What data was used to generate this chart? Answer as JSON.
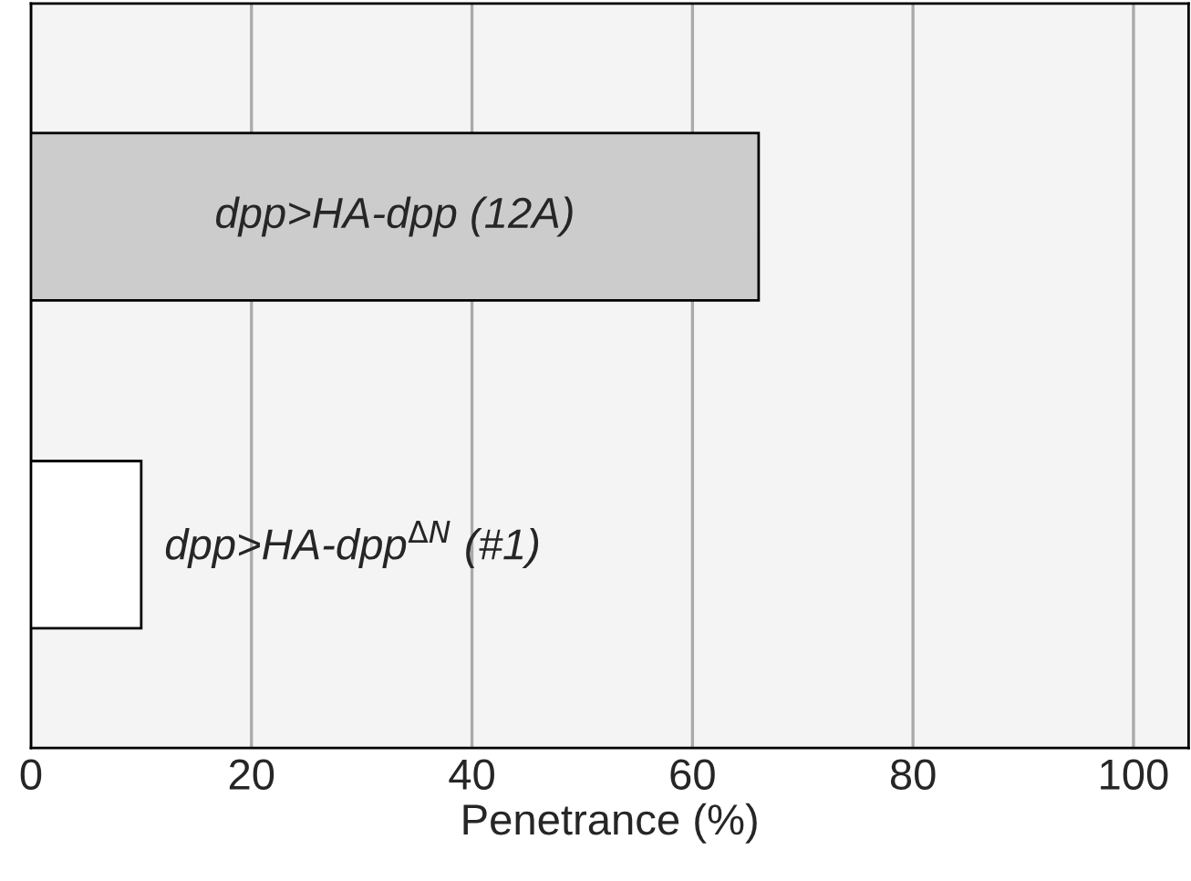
{
  "chart_data": {
    "type": "bar",
    "orientation": "horizontal",
    "categories": [
      "dpp>HA-dpp (12A)",
      "dpp>HA-dpp$^{ΔN}$ (#1)"
    ],
    "values": [
      66,
      10
    ],
    "colors": [
      "#cccccc",
      "#ffffff"
    ],
    "xlabel": "Penetrance (%)",
    "xlim": [
      0,
      105
    ],
    "xticks": [
      0,
      20,
      40,
      60,
      80,
      100
    ],
    "grid": "x"
  }
}
